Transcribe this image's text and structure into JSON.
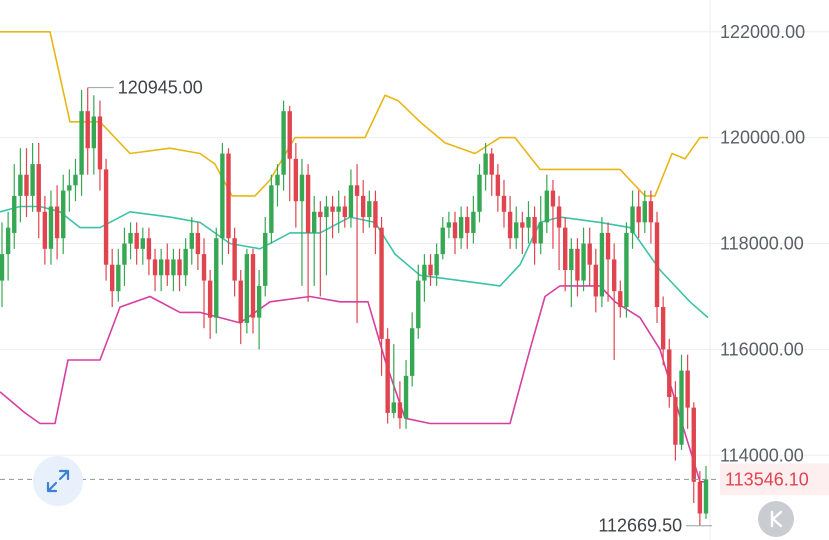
{
  "chart_data": {
    "type": "candlestick",
    "y_axis_position": "right",
    "ylim": [
      112400,
      122600
    ],
    "y_ticks": [
      {
        "value": 122000,
        "label": "122000.00"
      },
      {
        "value": 120000,
        "label": "120000.00"
      },
      {
        "value": 118000,
        "label": "118000.00"
      },
      {
        "value": 116000,
        "label": "116000.00"
      },
      {
        "value": 114000,
        "label": "114000.00"
      }
    ],
    "current_price": {
      "value": 113546.1,
      "label": "113546.10",
      "color": "#e0454f"
    },
    "max_marker": {
      "value": 120945,
      "label": "120945.00",
      "candle_index": 14
    },
    "min_marker": {
      "value": 112669.5,
      "label": "112669.50",
      "candle_index": 116
    },
    "colors": {
      "up": "#36a853",
      "down": "#e0454f",
      "upper_band": "#e8b616",
      "middle_band": "#3cc3a7",
      "lower_band": "#d63fa0",
      "grid": "#eceef1"
    },
    "candles": [
      [
        117300,
        117800,
        118400,
        116800
      ],
      [
        117800,
        118300,
        118600,
        117300
      ],
      [
        118200,
        118900,
        119500,
        117900
      ],
      [
        118900,
        119300,
        119800,
        118400
      ],
      [
        119300,
        118900,
        119800,
        118500
      ],
      [
        118900,
        119500,
        119900,
        118600
      ],
      [
        119500,
        118600,
        119900,
        118100
      ],
      [
        118600,
        117900,
        118900,
        117600
      ],
      [
        117900,
        118700,
        119000,
        117600
      ],
      [
        118700,
        118100,
        119100,
        117700
      ],
      [
        118100,
        119000,
        119300,
        117800
      ],
      [
        119000,
        119100,
        119400,
        118600
      ],
      [
        119100,
        119300,
        119600,
        118800
      ],
      [
        119300,
        120500,
        120900,
        118900
      ],
      [
        120500,
        119800,
        120945,
        119300
      ],
      [
        119800,
        120400,
        120800,
        119300
      ],
      [
        120400,
        119400,
        120700,
        119000
      ],
      [
        119400,
        117600,
        119600,
        117300
      ],
      [
        117600,
        117100,
        117900,
        116800
      ],
      [
        117100,
        117600,
        117900,
        116900
      ],
      [
        117600,
        118000,
        118300,
        117200
      ],
      [
        118000,
        118200,
        118400,
        117700
      ],
      [
        118200,
        117900,
        118400,
        117600
      ],
      [
        117900,
        118100,
        118300,
        117600
      ],
      [
        118100,
        117700,
        118300,
        117400
      ],
      [
        117700,
        117400,
        117900,
        117100
      ],
      [
        117400,
        117700,
        117900,
        117100
      ],
      [
        117700,
        117400,
        118000,
        117200
      ],
      [
        117400,
        117700,
        117900,
        117100
      ],
      [
        117700,
        117400,
        117900,
        117100
      ],
      [
        117400,
        117900,
        118100,
        117200
      ],
      [
        117900,
        118200,
        118500,
        117600
      ],
      [
        118200,
        117800,
        118400,
        117500
      ],
      [
        117800,
        117300,
        118100,
        116400
      ],
      [
        117300,
        116600,
        117500,
        116200
      ],
      [
        116600,
        118100,
        118300,
        116300
      ],
      [
        118100,
        119700,
        119900,
        117600
      ],
      [
        119700,
        118100,
        119800,
        117800
      ],
      [
        118100,
        117300,
        118300,
        117000
      ],
      [
        117300,
        116500,
        117500,
        116100
      ],
      [
        116500,
        117800,
        117900,
        116300
      ],
      [
        117800,
        116600,
        117900,
        116300
      ],
      [
        116600,
        117200,
        117500,
        116000
      ],
      [
        117200,
        118200,
        118500,
        117000
      ],
      [
        118200,
        119100,
        119300,
        118000
      ],
      [
        119100,
        119300,
        119500,
        118700
      ],
      [
        119300,
        120500,
        120700,
        119000
      ],
      [
        120500,
        119600,
        120600,
        118800
      ],
      [
        119600,
        118800,
        119900,
        118300
      ],
      [
        118800,
        119300,
        119600,
        117200
      ],
      [
        119300,
        118200,
        119500,
        116900
      ],
      [
        118200,
        118600,
        118900,
        117200
      ],
      [
        118600,
        118500,
        118800,
        117000
      ],
      [
        118500,
        118700,
        118900,
        117400
      ],
      [
        118700,
        118600,
        118900,
        118100
      ],
      [
        118600,
        118700,
        119000,
        118200
      ],
      [
        118700,
        118500,
        118900,
        118300
      ],
      [
        118500,
        119100,
        119400,
        118300
      ],
      [
        119100,
        118900,
        119500,
        116500
      ],
      [
        118900,
        118500,
        119200,
        118200
      ],
      [
        118500,
        118800,
        119000,
        118300
      ],
      [
        118800,
        118300,
        119000,
        117800
      ],
      [
        118300,
        116200,
        118500,
        115500
      ],
      [
        116200,
        114800,
        116400,
        114600
      ],
      [
        114800,
        115000,
        116100,
        114700
      ],
      [
        115000,
        114700,
        115400,
        114500
      ],
      [
        114700,
        115500,
        115800,
        114500
      ],
      [
        115500,
        116400,
        116700,
        115300
      ],
      [
        116400,
        117300,
        117600,
        116200
      ],
      [
        117300,
        117600,
        117800,
        116900
      ],
      [
        117600,
        117400,
        117800,
        117200
      ],
      [
        117400,
        117800,
        118000,
        117200
      ],
      [
        117800,
        118300,
        118500,
        117700
      ],
      [
        118300,
        118400,
        118600,
        118100
      ],
      [
        118400,
        118100,
        118600,
        117800
      ],
      [
        118100,
        118500,
        118700,
        117900
      ],
      [
        118500,
        118200,
        118700,
        117900
      ],
      [
        118200,
        118600,
        118900,
        118000
      ],
      [
        118600,
        119300,
        119500,
        118400
      ],
      [
        119300,
        119700,
        119900,
        119000
      ],
      [
        119700,
        119300,
        119800,
        118900
      ],
      [
        119300,
        118900,
        119500,
        118600
      ],
      [
        118900,
        118600,
        119200,
        118300
      ],
      [
        118600,
        118100,
        118900,
        117900
      ],
      [
        118100,
        118400,
        118700,
        117900
      ],
      [
        118400,
        118300,
        118600,
        117800
      ],
      [
        118300,
        118500,
        118800,
        118000
      ],
      [
        118500,
        118000,
        118700,
        117600
      ],
      [
        118000,
        118400,
        118900,
        117800
      ],
      [
        118400,
        119000,
        119300,
        118200
      ],
      [
        119000,
        118700,
        119200,
        117900
      ],
      [
        118700,
        118300,
        118900,
        117500
      ],
      [
        118300,
        117500,
        118500,
        117100
      ],
      [
        117500,
        117900,
        118100,
        116800
      ],
      [
        117900,
        117300,
        118100,
        117000
      ],
      [
        117300,
        118000,
        118300,
        117100
      ],
      [
        118000,
        117600,
        118300,
        117200
      ],
      [
        117600,
        117000,
        117900,
        116700
      ],
      [
        117000,
        118200,
        118500,
        116800
      ],
      [
        118200,
        117700,
        118400,
        116900
      ],
      [
        117700,
        117100,
        118000,
        115800
      ],
      [
        117100,
        116800,
        117300,
        116600
      ],
      [
        116800,
        118200,
        118400,
        116600
      ],
      [
        118200,
        118700,
        119000,
        117900
      ],
      [
        118700,
        118400,
        119000,
        118100
      ],
      [
        118400,
        118800,
        119000,
        118200
      ],
      [
        118800,
        118400,
        119000,
        118000
      ],
      [
        118400,
        116800,
        118600,
        116500
      ],
      [
        116800,
        116000,
        117000,
        115700
      ],
      [
        116000,
        115100,
        116200,
        114900
      ],
      [
        115100,
        114200,
        115400,
        113900
      ],
      [
        114200,
        115600,
        115900,
        114100
      ],
      [
        115600,
        114900,
        115900,
        114500
      ],
      [
        114900,
        113500,
        115000,
        113100
      ],
      [
        113500,
        112900,
        113700,
        112669.5
      ],
      [
        112900,
        113546.1,
        113800,
        112800
      ]
    ],
    "upper_band": [
      [
        0,
        122000
      ],
      [
        28,
        122000
      ],
      [
        50,
        122000
      ],
      [
        70,
        120300
      ],
      [
        100,
        120300
      ],
      [
        130,
        119700
      ],
      [
        170,
        119800
      ],
      [
        200,
        119700
      ],
      [
        215,
        119500
      ],
      [
        232,
        118900
      ],
      [
        255,
        118900
      ],
      [
        270,
        119200
      ],
      [
        295,
        120000
      ],
      [
        330,
        120000
      ],
      [
        365,
        120000
      ],
      [
        385,
        120800
      ],
      [
        398,
        120700
      ],
      [
        420,
        120300
      ],
      [
        445,
        119900
      ],
      [
        475,
        119700
      ],
      [
        500,
        120000
      ],
      [
        515,
        120000
      ],
      [
        540,
        119400
      ],
      [
        560,
        119400
      ],
      [
        600,
        119400
      ],
      [
        620,
        119400
      ],
      [
        645,
        118900
      ],
      [
        655,
        118900
      ],
      [
        672,
        119700
      ],
      [
        685,
        119600
      ],
      [
        700,
        120000
      ],
      [
        708,
        120000
      ]
    ],
    "middle_band": [
      [
        0,
        118600
      ],
      [
        20,
        118700
      ],
      [
        40,
        118700
      ],
      [
        60,
        118600
      ],
      [
        80,
        118300
      ],
      [
        100,
        118300
      ],
      [
        130,
        118600
      ],
      [
        170,
        118500
      ],
      [
        200,
        118400
      ],
      [
        230,
        118000
      ],
      [
        260,
        117900
      ],
      [
        290,
        118200
      ],
      [
        320,
        118200
      ],
      [
        350,
        118500
      ],
      [
        375,
        118400
      ],
      [
        395,
        117800
      ],
      [
        420,
        117400
      ],
      [
        460,
        117300
      ],
      [
        500,
        117200
      ],
      [
        520,
        117600
      ],
      [
        540,
        118400
      ],
      [
        560,
        118500
      ],
      [
        600,
        118400
      ],
      [
        630,
        118300
      ],
      [
        660,
        117500
      ],
      [
        690,
        116900
      ],
      [
        708,
        116600
      ]
    ],
    "lower_band": [
      [
        0,
        115200
      ],
      [
        25,
        114800
      ],
      [
        40,
        114600
      ],
      [
        55,
        114600
      ],
      [
        68,
        115800
      ],
      [
        100,
        115800
      ],
      [
        120,
        116800
      ],
      [
        150,
        117000
      ],
      [
        180,
        116700
      ],
      [
        200,
        116700
      ],
      [
        240,
        116500
      ],
      [
        270,
        116900
      ],
      [
        310,
        117000
      ],
      [
        340,
        116900
      ],
      [
        368,
        116900
      ],
      [
        385,
        115800
      ],
      [
        405,
        114700
      ],
      [
        430,
        114600
      ],
      [
        490,
        114600
      ],
      [
        510,
        114600
      ],
      [
        530,
        116000
      ],
      [
        545,
        117000
      ],
      [
        560,
        117200
      ],
      [
        600,
        117200
      ],
      [
        615,
        116900
      ],
      [
        640,
        116600
      ],
      [
        660,
        116000
      ],
      [
        682,
        114600
      ],
      [
        700,
        113500
      ],
      [
        708,
        113500
      ]
    ]
  }
}
